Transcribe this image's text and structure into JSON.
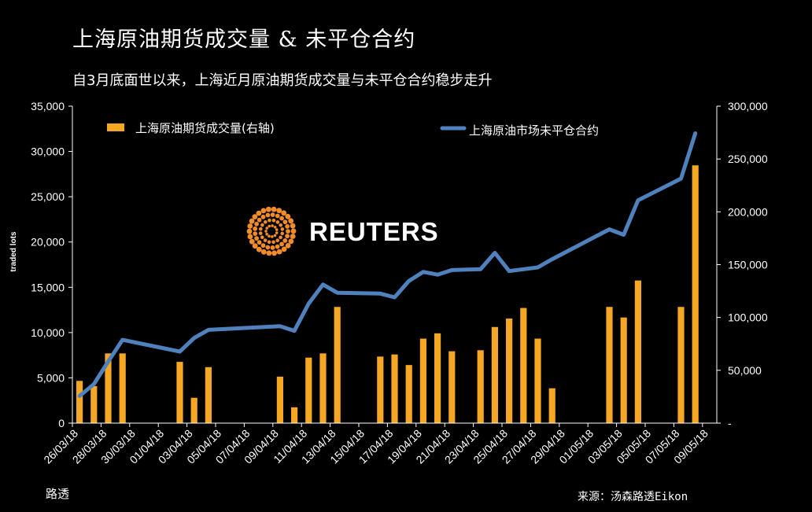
{
  "title": "上海原油期货成交量 & 未平仓合约",
  "subtitle": "自3月底面世以来，上海近月原油期货成交量与未平仓合约稳步走升",
  "credit": "路透",
  "source": "来源：汤森路透Eikon",
  "logo_text": "REUTERS",
  "colors": {
    "bar": "#F5A623",
    "line": "#4F81BD",
    "background": "#000000"
  },
  "chart_data": {
    "type": "bar+line",
    "ylabel": "traded lots",
    "ylim_left": [
      0,
      35000
    ],
    "ylim_right": [
      0,
      300000
    ],
    "left_ticks": [
      "0",
      "5,000",
      "10,000",
      "15,000",
      "20,000",
      "25,000",
      "30,000",
      "35,000"
    ],
    "right_ticks": [
      "-",
      "50,000",
      "100,000",
      "150,000",
      "200,000",
      "250,000",
      "300,000"
    ],
    "x_tick_labels": [
      "26/03/18",
      "28/03/18",
      "30/03/18",
      "01/04/18",
      "03/04/18",
      "05/04/18",
      "07/04/18",
      "09/04/18",
      "11/04/18",
      "13/04/18",
      "15/04/18",
      "17/04/18",
      "19/04/18",
      "21/04/18",
      "23/04/18",
      "25/04/18",
      "27/04/18",
      "29/04/18",
      "01/05/18",
      "03/05/18",
      "05/05/18",
      "07/05/18",
      "09/05/18"
    ],
    "legend": {
      "position": "top",
      "bar_label": "上海原油期货成交量(右轴)",
      "line_label": "上海原油市场未平仓合约"
    },
    "series": [
      {
        "name": "上海原油期货成交量(右轴)",
        "type": "bar",
        "axis": "right",
        "day_index": [
          0,
          1,
          2,
          3,
          7,
          8,
          9,
          14,
          15,
          16,
          17,
          18,
          21,
          22,
          23,
          24,
          25,
          26,
          28,
          29,
          30,
          31,
          32,
          33,
          37,
          38,
          39,
          42,
          43,
          44
        ],
        "values": [
          40000,
          35000,
          66000,
          66000,
          58000,
          24000,
          53000,
          44000,
          15000,
          62000,
          66000,
          110000,
          63000,
          65000,
          55000,
          80000,
          85000,
          68000,
          69000,
          91000,
          99000,
          109000,
          80000,
          33000,
          110000,
          100000,
          135000,
          110000,
          244000,
          0
        ]
      },
      {
        "name": "上海原油市场未平仓合约",
        "type": "line",
        "axis": "left",
        "day_index": [
          0,
          1,
          2,
          3,
          7,
          8,
          9,
          14,
          15,
          16,
          17,
          18,
          21,
          22,
          23,
          24,
          25,
          26,
          28,
          29,
          30,
          31,
          32,
          33,
          37,
          38,
          39,
          42,
          43,
          44
        ],
        "values": [
          3000,
          4300,
          6800,
          9200,
          7900,
          9400,
          10300,
          10700,
          10200,
          13200,
          15300,
          14400,
          14300,
          13900,
          15700,
          16700,
          16400,
          16900,
          17000,
          18800,
          16800,
          17000,
          17200,
          18100,
          21400,
          20800,
          24600,
          27000,
          32000,
          0
        ]
      }
    ]
  }
}
